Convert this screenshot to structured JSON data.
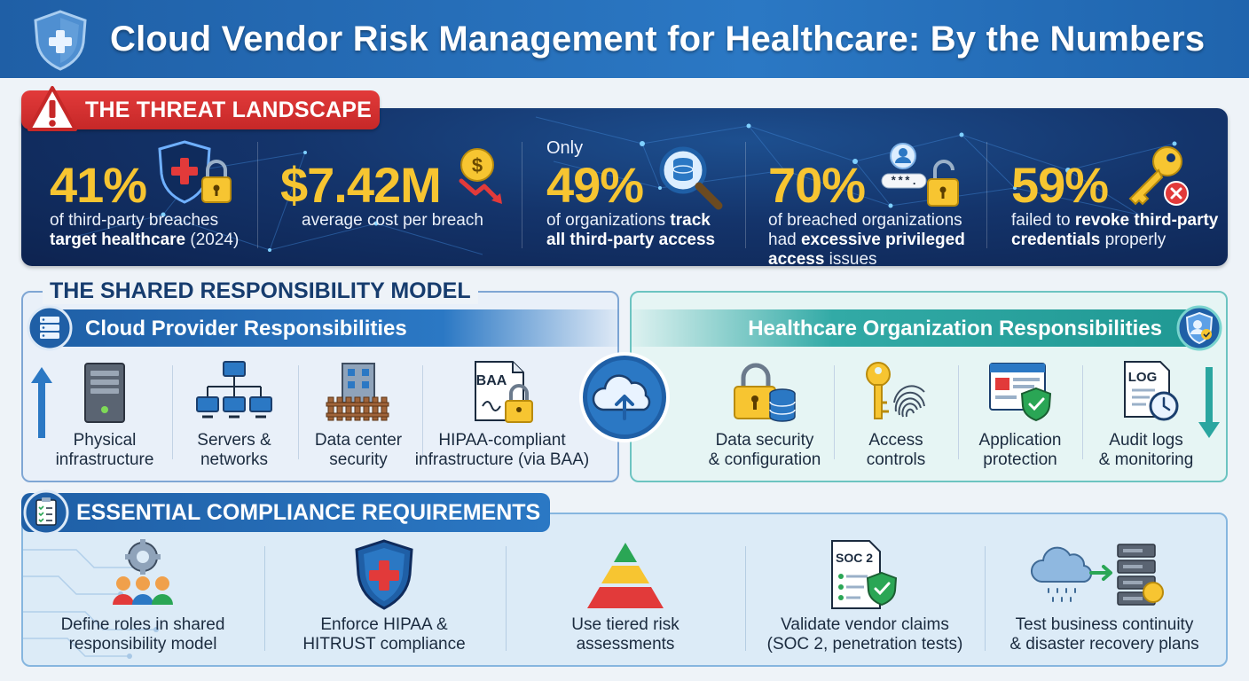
{
  "header": {
    "title": "Cloud Vendor Risk Management for Healthcare: By the Numbers",
    "logo_icon": "shield-plus-icon"
  },
  "threat": {
    "heading": "THE THREAT LANDSCAPE",
    "accent_color": "#d32f2f",
    "number_color": "#f7c531",
    "stats": [
      {
        "prefix": "",
        "value": "41%",
        "desc_plain_1": "of third-party breaches",
        "desc_bold_2": "target healthcare",
        "desc_plain_2": " (2024)",
        "icon": "medical-shield-lock-icon"
      },
      {
        "prefix": "",
        "value": "$7.42M",
        "desc_plain_1": "average cost per breach",
        "icon": "dollar-down-arrow-icon"
      },
      {
        "prefix": "Only",
        "value": "49%",
        "desc_plain_1": "of organizations ",
        "desc_bold_1": "track",
        "desc_bold_2": "all third-party access",
        "icon": "magnify-database-icon"
      },
      {
        "prefix": "",
        "value": "70%",
        "desc_plain_1": "of breached organizations",
        "desc_plain_2": "had ",
        "desc_bold_2": "excessive privileged",
        "desc_bold_3": "access",
        "desc_plain_3": " issues",
        "icon": "user-password-lock-icon"
      },
      {
        "prefix": "",
        "value": "59%",
        "desc_plain_1": "failed to ",
        "desc_bold_1": "revoke third-party",
        "desc_bold_2": "credentials",
        "desc_plain_2": " properly",
        "icon": "key-revoked-icon"
      }
    ]
  },
  "shared": {
    "heading": "THE SHARED RESPONSIBILITY MODEL",
    "provider": {
      "title": "Cloud Provider Responsibilities",
      "items": [
        {
          "line1": "Physical",
          "line2": "infrastructure",
          "icon": "server-tower-icon"
        },
        {
          "line1": "Servers &",
          "line2": "networks",
          "icon": "network-computers-icon"
        },
        {
          "line1": "Data center",
          "line2": "security",
          "icon": "fenced-building-icon"
        },
        {
          "line1": "HIPAA-compliant",
          "line2": "infrastructure (via BAA)",
          "icon": "baa-document-lock-icon",
          "doc_label": "BAA"
        }
      ]
    },
    "organization": {
      "title": "Healthcare Organization Responsibilities",
      "items": [
        {
          "line1": "Data security",
          "line2": "& configuration",
          "icon": "lock-database-icon"
        },
        {
          "line1": "Access",
          "line2": "controls",
          "icon": "key-fingerprint-icon"
        },
        {
          "line1": "Application",
          "line2": "protection",
          "icon": "browser-shield-icon"
        },
        {
          "line1": "Audit logs",
          "line2": "& monitoring",
          "icon": "log-clock-icon",
          "doc_label": "LOG"
        }
      ]
    }
  },
  "compliance": {
    "heading": "ESSENTIAL COMPLIANCE REQUIREMENTS",
    "items": [
      {
        "line1": "Define roles in shared",
        "line2": "responsibility model",
        "icon": "team-gear-icon"
      },
      {
        "line1": "Enforce HIPAA &",
        "line2": "HITRUST compliance",
        "icon": "medical-shield-icon"
      },
      {
        "line1": "Use tiered risk",
        "line2": "assessments",
        "icon": "risk-pyramid-icon"
      },
      {
        "line1": "Validate vendor claims",
        "line2": "(SOC 2, penetration tests)",
        "icon": "soc2-certificate-icon",
        "doc_label": "SOC 2"
      },
      {
        "line1": "Test business continuity",
        "line2": "& disaster recovery plans",
        "icon": "cloud-to-server-icon"
      }
    ]
  }
}
